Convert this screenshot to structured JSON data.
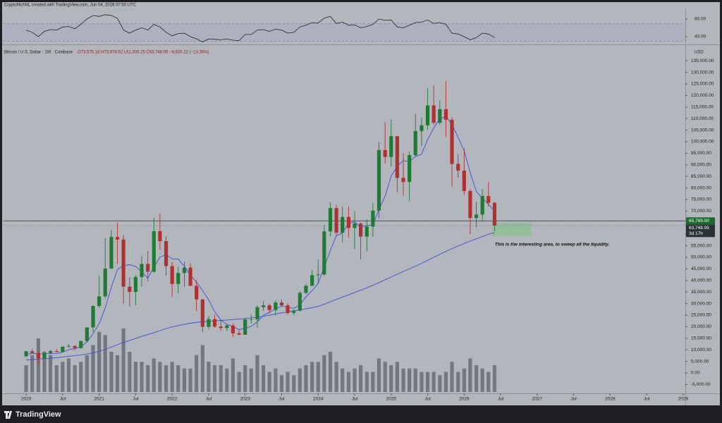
{
  "header": {
    "author_line": "CryptoNichNL created with TradingView.com, Jun 04, 2026 07:50 UTC"
  },
  "footer": {
    "brand": "TradingView"
  },
  "chart_data": [
    {
      "type": "line",
      "color": "#222222",
      "ylim": [
        24,
        100.8
      ],
      "yticks": [
        {
          "value": 80,
          "label": "80.00"
        },
        {
          "value": 40,
          "label": "40.00"
        }
      ],
      "bands": [
        30,
        70
      ],
      "values": [
        55,
        50,
        40,
        52,
        56,
        55,
        62,
        63,
        58,
        68,
        80,
        88,
        86,
        90,
        88,
        82,
        55,
        48,
        55,
        60,
        55,
        68,
        62,
        50,
        42,
        47,
        48,
        40,
        35,
        28,
        35,
        34,
        33,
        35,
        32,
        31,
        45,
        45,
        55,
        56,
        52,
        57,
        55,
        48,
        50,
        62,
        66,
        72,
        71,
        82,
        86,
        70,
        73,
        66,
        67,
        60,
        63,
        68,
        80,
        77,
        78,
        62,
        60,
        66,
        72,
        73,
        78,
        70,
        72,
        68,
        48,
        46,
        40,
        33,
        38,
        48,
        46,
        38
      ]
    },
    {
      "type": "candlestick",
      "title": "Bitcoin / U.S. Dollar · 1W · Coinbase",
      "legend_values": "O73,575.18 H73,978.52 L61,309.25 C63,748.95 −9,826.22 (−13.36%)",
      "currency": "USD",
      "up_color": "#1e7b34",
      "down_color": "#b0312f",
      "xlim": [
        2019.69,
        2029.03
      ],
      "ylim": [
        -8840,
        141770
      ],
      "x": [
        2020,
        2020.083,
        2020.167,
        2020.25,
        2020.333,
        2020.417,
        2020.5,
        2020.583,
        2020.667,
        2020.75,
        2020.833,
        2020.917,
        2021,
        2021.083,
        2021.167,
        2021.25,
        2021.333,
        2021.417,
        2021.5,
        2021.583,
        2021.667,
        2021.75,
        2021.833,
        2021.917,
        2022,
        2022.083,
        2022.167,
        2022.25,
        2022.333,
        2022.417,
        2022.5,
        2022.583,
        2022.667,
        2022.75,
        2022.833,
        2022.917,
        2023,
        2023.083,
        2023.167,
        2023.25,
        2023.333,
        2023.417,
        2023.5,
        2023.583,
        2023.667,
        2023.75,
        2023.833,
        2023.917,
        2024,
        2024.083,
        2024.167,
        2024.25,
        2024.333,
        2024.417,
        2024.5,
        2024.583,
        2024.667,
        2024.75,
        2024.833,
        2024.917,
        2025,
        2025.083,
        2025.167,
        2025.25,
        2025.333,
        2025.417,
        2025.5,
        2025.583,
        2025.667,
        2025.75,
        2025.833,
        2025.917,
        2026,
        2026.083,
        2026.167,
        2026.25,
        2026.333,
        2026.417
      ],
      "open": [
        7200,
        9350,
        8550,
        6400,
        8650,
        9450,
        9150,
        11350,
        11650,
        10780,
        13800,
        19700,
        28950,
        33100,
        45150,
        58800,
        57700,
        37300,
        35050,
        41500,
        47150,
        43800,
        61300,
        57000,
        46200,
        38500,
        43200,
        45550,
        37650,
        31800,
        19950,
        23300,
        20050,
        19450,
        20500,
        17150,
        16550,
        23150,
        23150,
        28450,
        29250,
        27200,
        30450,
        29250,
        25950,
        26950,
        34650,
        37700,
        42300,
        42600,
        61200,
        71300,
        60650,
        67500,
        62700,
        64600,
        58950,
        63300,
        70200,
        96400,
        93400,
        102400,
        84350,
        82550,
        94200,
        104600,
        107100,
        115700,
        108200,
        114050,
        109500,
        90400,
        87500,
        78700,
        67000,
        68500,
        76500,
        73575.18
      ],
      "high": [
        9600,
        10500,
        9200,
        9450,
        10050,
        10400,
        11450,
        12480,
        12100,
        14100,
        19500,
        29300,
        41950,
        58350,
        61800,
        64850,
        59600,
        41300,
        42400,
        50500,
        52900,
        67000,
        69000,
        59100,
        47950,
        45800,
        48200,
        47450,
        40050,
        31950,
        24650,
        25200,
        22800,
        20950,
        21450,
        18400,
        23950,
        25250,
        29200,
        31000,
        29850,
        31400,
        31800,
        30200,
        27500,
        35200,
        38400,
        44700,
        48950,
        63900,
        73800,
        72700,
        71950,
        71950,
        70000,
        65000,
        66500,
        73600,
        99800,
        108300,
        109600,
        102500,
        95000,
        95750,
        111900,
        110400,
        123200,
        124450,
        117900,
        126200,
        110600,
        94600,
        97000,
        79500,
        74000,
        79500,
        82500,
        73978.52
      ],
      "low": [
        6850,
        8450,
        3850,
        6150,
        8100,
        8900,
        8950,
        10950,
        9850,
        10400,
        13200,
        17600,
        28150,
        32300,
        44950,
        47050,
        30000,
        28800,
        29300,
        37350,
        39600,
        43300,
        53250,
        42000,
        32950,
        34300,
        37150,
        37700,
        26700,
        17600,
        18800,
        19550,
        18150,
        18200,
        15500,
        16300,
        16500,
        21350,
        19550,
        26950,
        25800,
        24800,
        28850,
        25200,
        24900,
        26550,
        34100,
        37600,
        38550,
        41900,
        59100,
        59600,
        56550,
        58400,
        53500,
        49000,
        52550,
        58900,
        66800,
        90500,
        89200,
        78200,
        76600,
        74400,
        93400,
        98200,
        105100,
        107300,
        107300,
        102000,
        80600,
        84400,
        77000,
        60000,
        63000,
        66000,
        72000,
        61309.25
      ],
      "close": [
        9350,
        8550,
        6400,
        8650,
        9450,
        9150,
        11350,
        11650,
        10780,
        13800,
        19700,
        28950,
        33100,
        45150,
        58800,
        57700,
        37300,
        35050,
        41500,
        47150,
        43800,
        61300,
        57000,
        46200,
        38500,
        43200,
        45550,
        37650,
        31800,
        19950,
        23300,
        20050,
        19450,
        20500,
        17150,
        16550,
        23150,
        23150,
        28450,
        29250,
        27200,
        30450,
        29250,
        25950,
        26950,
        34650,
        37700,
        42300,
        42600,
        61200,
        71300,
        60650,
        67500,
        62700,
        64600,
        58950,
        63300,
        70200,
        96400,
        93400,
        102400,
        84350,
        82550,
        94200,
        104600,
        107100,
        115700,
        108200,
        114050,
        109500,
        90400,
        87500,
        78700,
        67000,
        68500,
        76500,
        73575.18,
        63748.95
      ],
      "lines": [
        {
          "color": "#3b4fd8",
          "values": [
            8000,
            8500,
            8300,
            8200,
            8480,
            8440,
            9000,
            10050,
            10480,
            11350,
            13460,
            16980,
            21270,
            28140,
            37140,
            44740,
            46410,
            46800,
            46070,
            43740,
            40960,
            45750,
            50150,
            51090,
            49360,
            49240,
            46090,
            42220,
            39340,
            35630,
            31650,
            26550,
            22910,
            21050,
            20090,
            18740,
            19370,
            20160,
            22060,
            24910,
            26240,
            27700,
            28920,
            28420,
            27960,
            29450,
            32900,
            35510,
            38760,
            45690,
            53020,
            59350,
            60650,
            64670,
            65350,
            62940,
            63810,
            63950,
            70690,
            76450,
            85140,
            89370,
            91820,
            91380,
            93620,
            94560,
            100920,
            105960,
            109930,
            110910,
            107570,
            101930,
            96030,
            86620,
            78420,
            75620,
            72860,
            69860
          ]
        },
        {
          "color": "#3b4fd8",
          "values": [
            5600,
            5800,
            6000,
            6200,
            6400,
            6600,
            6900,
            7200,
            7500,
            7800,
            8200,
            8700,
            9400,
            10200,
            11200,
            12200,
            13200,
            14000,
            14900,
            15800,
            16600,
            17400,
            18300,
            19200,
            19900,
            20500,
            21000,
            21500,
            21900,
            22100,
            22300,
            22500,
            22700,
            22900,
            23100,
            23300,
            23500,
            23800,
            24100,
            24500,
            25000,
            25500,
            26000,
            26400,
            26800,
            27200,
            27700,
            28200,
            28800,
            29700,
            30800,
            31800,
            32800,
            33800,
            34800,
            35800,
            36800,
            37900,
            39100,
            40300,
            41500,
            42700,
            43900,
            45000,
            46200,
            47400,
            48700,
            50000,
            51300,
            52600,
            53800,
            54900,
            56000,
            57000,
            58000,
            59000,
            60000,
            60700
          ]
        }
      ],
      "volume": {
        "color": "#5f6168",
        "lim": [
          0,
          100
        ],
        "values": [
          40,
          55,
          80,
          60,
          55,
          40,
          45,
          50,
          40,
          45,
          55,
          70,
          90,
          85,
          60,
          55,
          95,
          60,
          45,
          45,
          40,
          50,
          45,
          40,
          45,
          40,
          35,
          35,
          55,
          70,
          45,
          40,
          40,
          35,
          50,
          30,
          40,
          35,
          55,
          40,
          30,
          35,
          25,
          30,
          25,
          35,
          40,
          45,
          45,
          55,
          60,
          45,
          35,
          30,
          35,
          40,
          30,
          30,
          50,
          45,
          40,
          45,
          35,
          35,
          35,
          30,
          30,
          30,
          25,
          30,
          45,
          30,
          35,
          50,
          40,
          35,
          30,
          40
        ]
      },
      "price_line": {
        "value": 65769,
        "label": "65,769.00",
        "color": "#1b6b2c"
      },
      "last_price": {
        "value": 63748.95,
        "label": "63,748.95",
        "countdown": "3d 17h"
      },
      "zone": {
        "x": [
          2026.38,
          2026.92
        ],
        "y": [
          59100,
          64900
        ],
        "color": "#8fbf95"
      },
      "annotation": {
        "text": "This is the interesting area, to sweep all the liquidity.",
        "x": 2026.42,
        "y": 55500
      },
      "xticks": [
        {
          "value": 2020,
          "label": "2020"
        },
        {
          "value": 2020.5,
          "label": "Jul"
        },
        {
          "value": 2021,
          "label": "2021"
        },
        {
          "value": 2021.5,
          "label": "Jul"
        },
        {
          "value": 2022,
          "label": "2022"
        },
        {
          "value": 2022.5,
          "label": "Jul"
        },
        {
          "value": 2023,
          "label": "2023"
        },
        {
          "value": 2023.5,
          "label": "Jul"
        },
        {
          "value": 2024,
          "label": "2024"
        },
        {
          "value": 2024.5,
          "label": "Jul"
        },
        {
          "value": 2025,
          "label": "2025"
        },
        {
          "value": 2025.5,
          "label": "Jul"
        },
        {
          "value": 2026,
          "label": "2026"
        },
        {
          "value": 2026.5,
          "label": "Jul"
        },
        {
          "value": 2027,
          "label": "2027"
        },
        {
          "value": 2027.5,
          "label": "Jul"
        },
        {
          "value": 2028,
          "label": "2028"
        },
        {
          "value": 2028.5,
          "label": "Jul"
        },
        {
          "value": 2029,
          "label": "2029"
        }
      ],
      "yticks": [
        {
          "value": 135000,
          "label": "135,000.00"
        },
        {
          "value": 130000,
          "label": "130,000.00"
        },
        {
          "value": 125000,
          "label": "125,000.00"
        },
        {
          "value": 120000,
          "label": "120,000.00"
        },
        {
          "value": 115000,
          "label": "115,000.00"
        },
        {
          "value": 110000,
          "label": "110,000.00"
        },
        {
          "value": 105000,
          "label": "105,000.00"
        },
        {
          "value": 100000,
          "label": "100,000.00"
        },
        {
          "value": 95000,
          "label": "95,000.00"
        },
        {
          "value": 90000,
          "label": "90,000.00"
        },
        {
          "value": 85000,
          "label": "85,000.00"
        },
        {
          "value": 80000,
          "label": "80,000.00"
        },
        {
          "value": 75000,
          "label": "75,000.00"
        },
        {
          "value": 70000,
          "label": "70,000.00"
        },
        {
          "value": 60000,
          "label": "60,000.00"
        },
        {
          "value": 55000,
          "label": "55,000.00"
        },
        {
          "value": 50000,
          "label": "50,000.00"
        },
        {
          "value": 45000,
          "label": "45,000.00"
        },
        {
          "value": 40000,
          "label": "40,000.00"
        },
        {
          "value": 35000,
          "label": "35,000.00"
        },
        {
          "value": 30000,
          "label": "30,000.00"
        },
        {
          "value": 25000,
          "label": "25,000.00"
        },
        {
          "value": 20000,
          "label": "20,000.00"
        },
        {
          "value": 15000,
          "label": "15,000.00"
        },
        {
          "value": 10000,
          "label": "10,000.00"
        },
        {
          "value": 5000,
          "label": "5,000.00"
        },
        {
          "value": 0,
          "label": "0.00"
        },
        {
          "value": -5000,
          "label": "-5,000.00"
        }
      ]
    }
  ]
}
